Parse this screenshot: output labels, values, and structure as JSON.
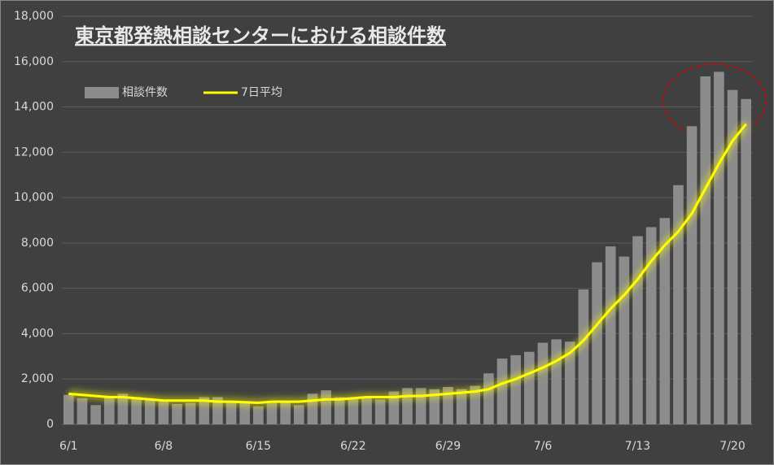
{
  "chart_data": {
    "type": "bar-line",
    "title": "東京都発熱相談センターにおける相談件数",
    "categories": [
      "6/1",
      null,
      null,
      null,
      null,
      null,
      null,
      "6/8",
      null,
      null,
      null,
      null,
      null,
      null,
      "6/15",
      null,
      null,
      null,
      null,
      null,
      null,
      "6/22",
      null,
      null,
      null,
      null,
      null,
      null,
      "6/29",
      null,
      null,
      null,
      null,
      null,
      null,
      "7/6",
      null,
      null,
      null,
      null,
      null,
      null,
      "7/13",
      null,
      null,
      null,
      null,
      null,
      null,
      "7/20",
      null
    ],
    "series": [
      {
        "name": "相談件数",
        "color": "#8c8c8c",
        "kind": "bar",
        "values": [
          1300,
          1150,
          850,
          1200,
          1350,
          1200,
          1100,
          1000,
          900,
          950,
          1200,
          1200,
          1000,
          950,
          800,
          950,
          1000,
          850,
          1350,
          1500,
          1200,
          1150,
          1200,
          1100,
          1450,
          1600,
          1600,
          1550,
          1650,
          1550,
          1700,
          2250,
          2900,
          3050,
          3200,
          3600,
          3750,
          3650,
          5950,
          7150,
          7850,
          7400,
          8300,
          8700,
          9100,
          10550,
          13150,
          15350,
          15550,
          14750,
          14350
        ]
      },
      {
        "name": "7日平均",
        "color": "#ffff00",
        "kind": "line",
        "values": [
          1350,
          1300,
          1250,
          1200,
          1200,
          1150,
          1100,
          1050,
          1050,
          1050,
          1050,
          1000,
          1000,
          980,
          950,
          1000,
          1000,
          1000,
          1050,
          1100,
          1100,
          1150,
          1200,
          1200,
          1200,
          1250,
          1250,
          1300,
          1350,
          1400,
          1450,
          1550,
          1800,
          2000,
          2250,
          2500,
          2800,
          3150,
          3700,
          4400,
          5100,
          5700,
          6400,
          7200,
          7900,
          8500,
          9300,
          10400,
          11500,
          12500,
          13250
        ]
      }
    ],
    "ylim": [
      0,
      18000
    ],
    "yticks": [
      0,
      {
        "value": 2000,
        "label": "2,000"
      },
      {
        "value": 4000,
        "label": "4,000"
      },
      {
        "value": 6000,
        "label": "6,000"
      },
      {
        "value": 8000,
        "label": "8,000"
      },
      {
        "value": 10000,
        "label": "10,000"
      },
      {
        "value": 12000,
        "label": "12,000"
      },
      {
        "value": 14000,
        "label": "14,000"
      },
      {
        "value": 16000,
        "label": "16,000"
      },
      {
        "value": 18000,
        "label": "18,000"
      }
    ],
    "grid": true,
    "legend": "upper left"
  }
}
